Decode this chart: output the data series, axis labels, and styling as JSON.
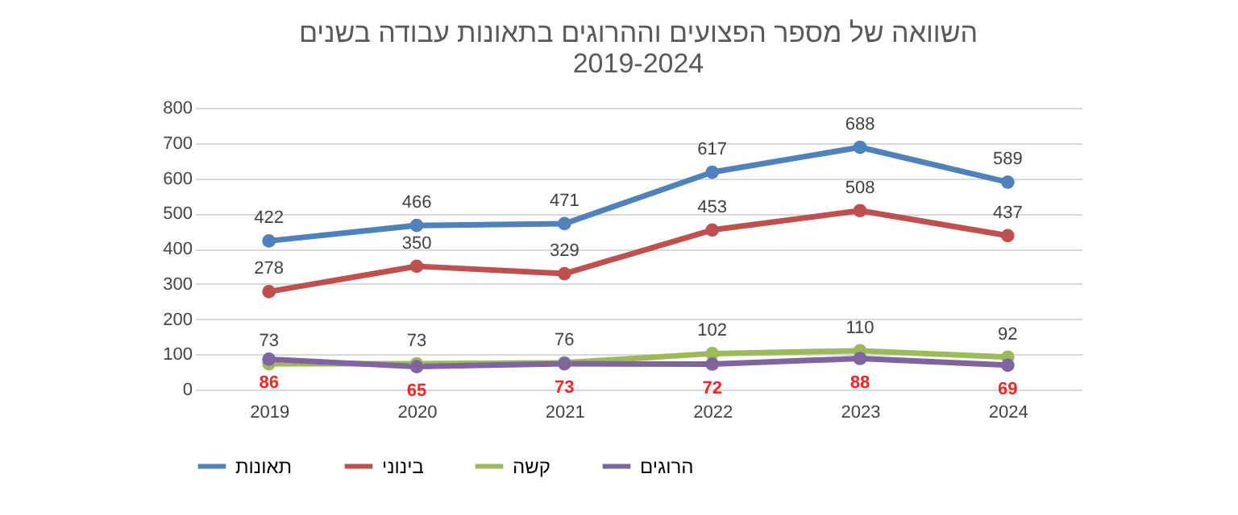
{
  "chart_data": {
    "type": "line",
    "title": "השוואה של מספר הפצועים וההרוגים בתאונות עבודה בשנים 2019-2024",
    "categories": [
      "2019",
      "2020",
      "2021",
      "2022",
      "2023",
      "2024"
    ],
    "series": [
      {
        "name": "תאונות",
        "color": "#4f81bd",
        "values": [
          422,
          466,
          471,
          617,
          688,
          589
        ]
      },
      {
        "name": "בינוני",
        "color": "#c0504d",
        "values": [
          278,
          350,
          329,
          453,
          508,
          437
        ]
      },
      {
        "name": "קשה",
        "color": "#9bbb59",
        "values": [
          73,
          73,
          76,
          102,
          110,
          92
        ]
      },
      {
        "name": "הרוגים",
        "color": "#8064a2",
        "values": [
          86,
          65,
          73,
          72,
          88,
          69
        ]
      }
    ],
    "ylim": [
      0,
      800
    ],
    "yticks": [
      0,
      100,
      200,
      300,
      400,
      500,
      600,
      700,
      800
    ],
    "grid": "y",
    "legend": "bottom",
    "marker": "circle",
    "line_style": "solid",
    "data_labels": true
  }
}
